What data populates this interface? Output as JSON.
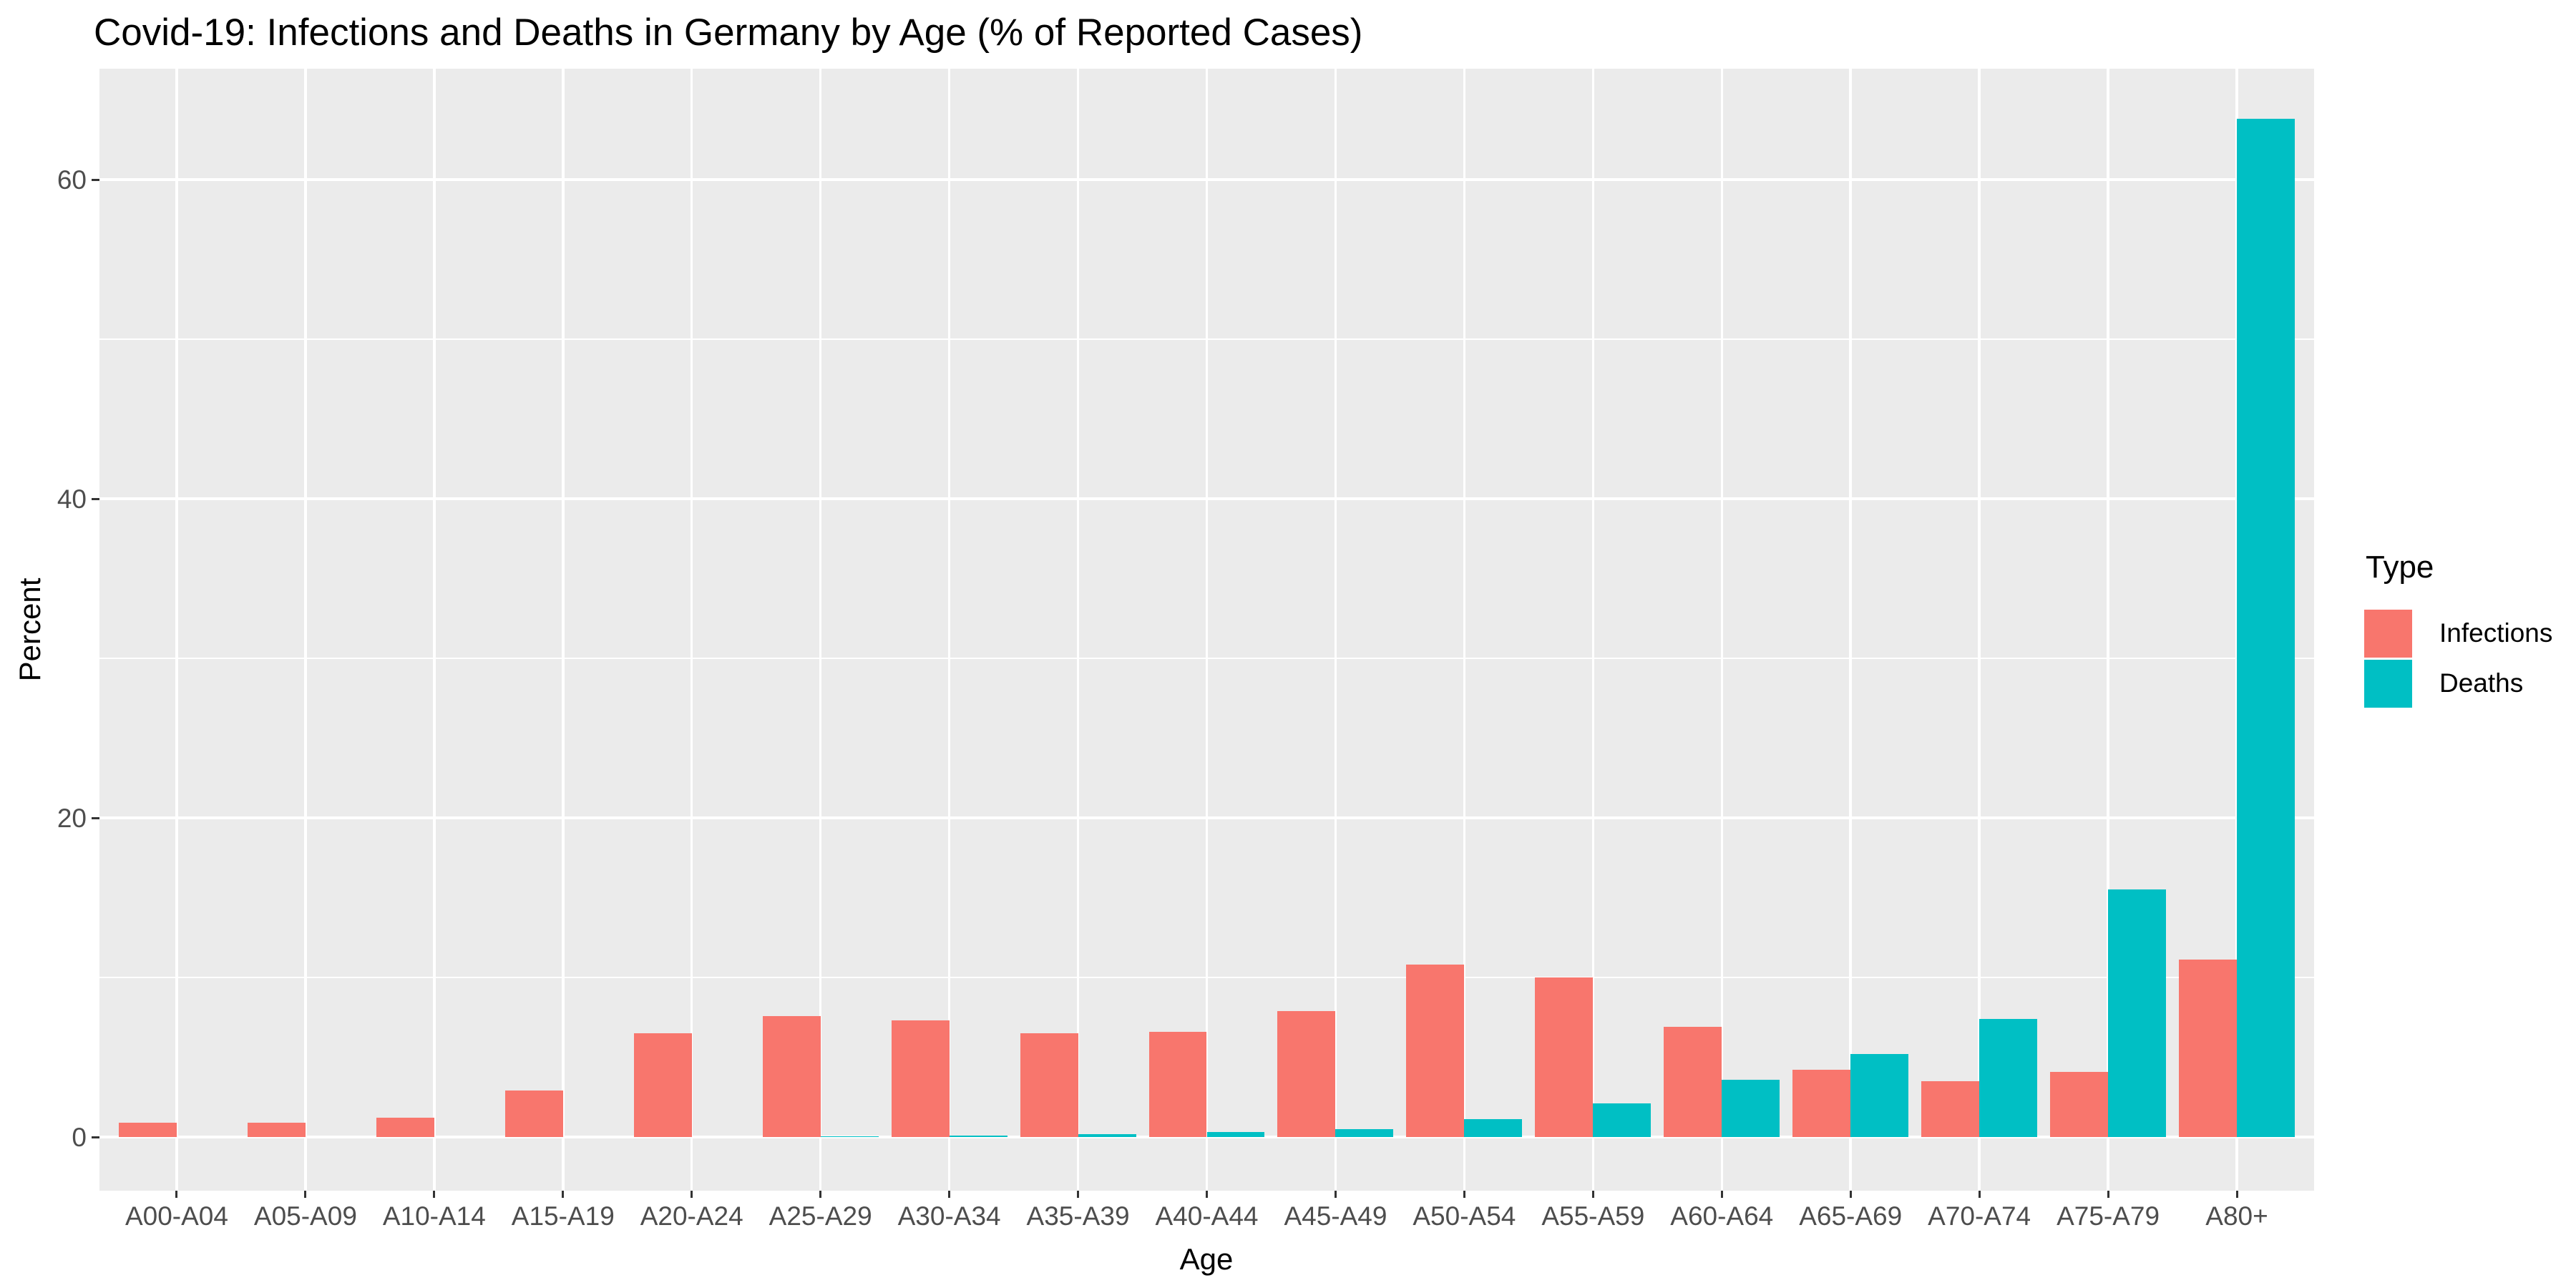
{
  "chart_data": {
    "type": "bar",
    "title": "Covid-19: Infections and Deaths in Germany by Age (% of Reported Cases)",
    "xlabel": "Age",
    "ylabel": "Percent",
    "legend_title": "Type",
    "legend_position": "right",
    "grid": true,
    "panel_bg": "#EBEBEB",
    "grid_color": "#FFFFFF",
    "axis_text_color": "#4D4D4D",
    "ylim": [
      0,
      67
    ],
    "yticks": [
      0,
      20,
      40,
      60
    ],
    "yticks_minor": [
      10,
      30,
      50
    ],
    "categories": [
      "A00-A04",
      "A05-A09",
      "A10-A14",
      "A15-A19",
      "A20-A24",
      "A25-A29",
      "A30-A34",
      "A35-A39",
      "A40-A44",
      "A45-A49",
      "A50-A54",
      "A55-A59",
      "A60-A64",
      "A65-A69",
      "A70-A74",
      "A75-A79",
      "A80+"
    ],
    "series": [
      {
        "name": "Infections",
        "color": "#F8766D",
        "values": [
          0.9,
          0.9,
          1.2,
          2.9,
          6.5,
          7.6,
          7.3,
          6.5,
          6.6,
          7.9,
          10.8,
          10.0,
          6.9,
          4.2,
          3.5,
          4.1,
          11.1
        ]
      },
      {
        "name": "Deaths",
        "color": "#00BFC4",
        "values": [
          0,
          0,
          0,
          0,
          0,
          0.05,
          0.1,
          0.2,
          0.3,
          0.5,
          1.1,
          2.1,
          3.6,
          5.2,
          7.4,
          15.5,
          63.8
        ]
      }
    ]
  }
}
